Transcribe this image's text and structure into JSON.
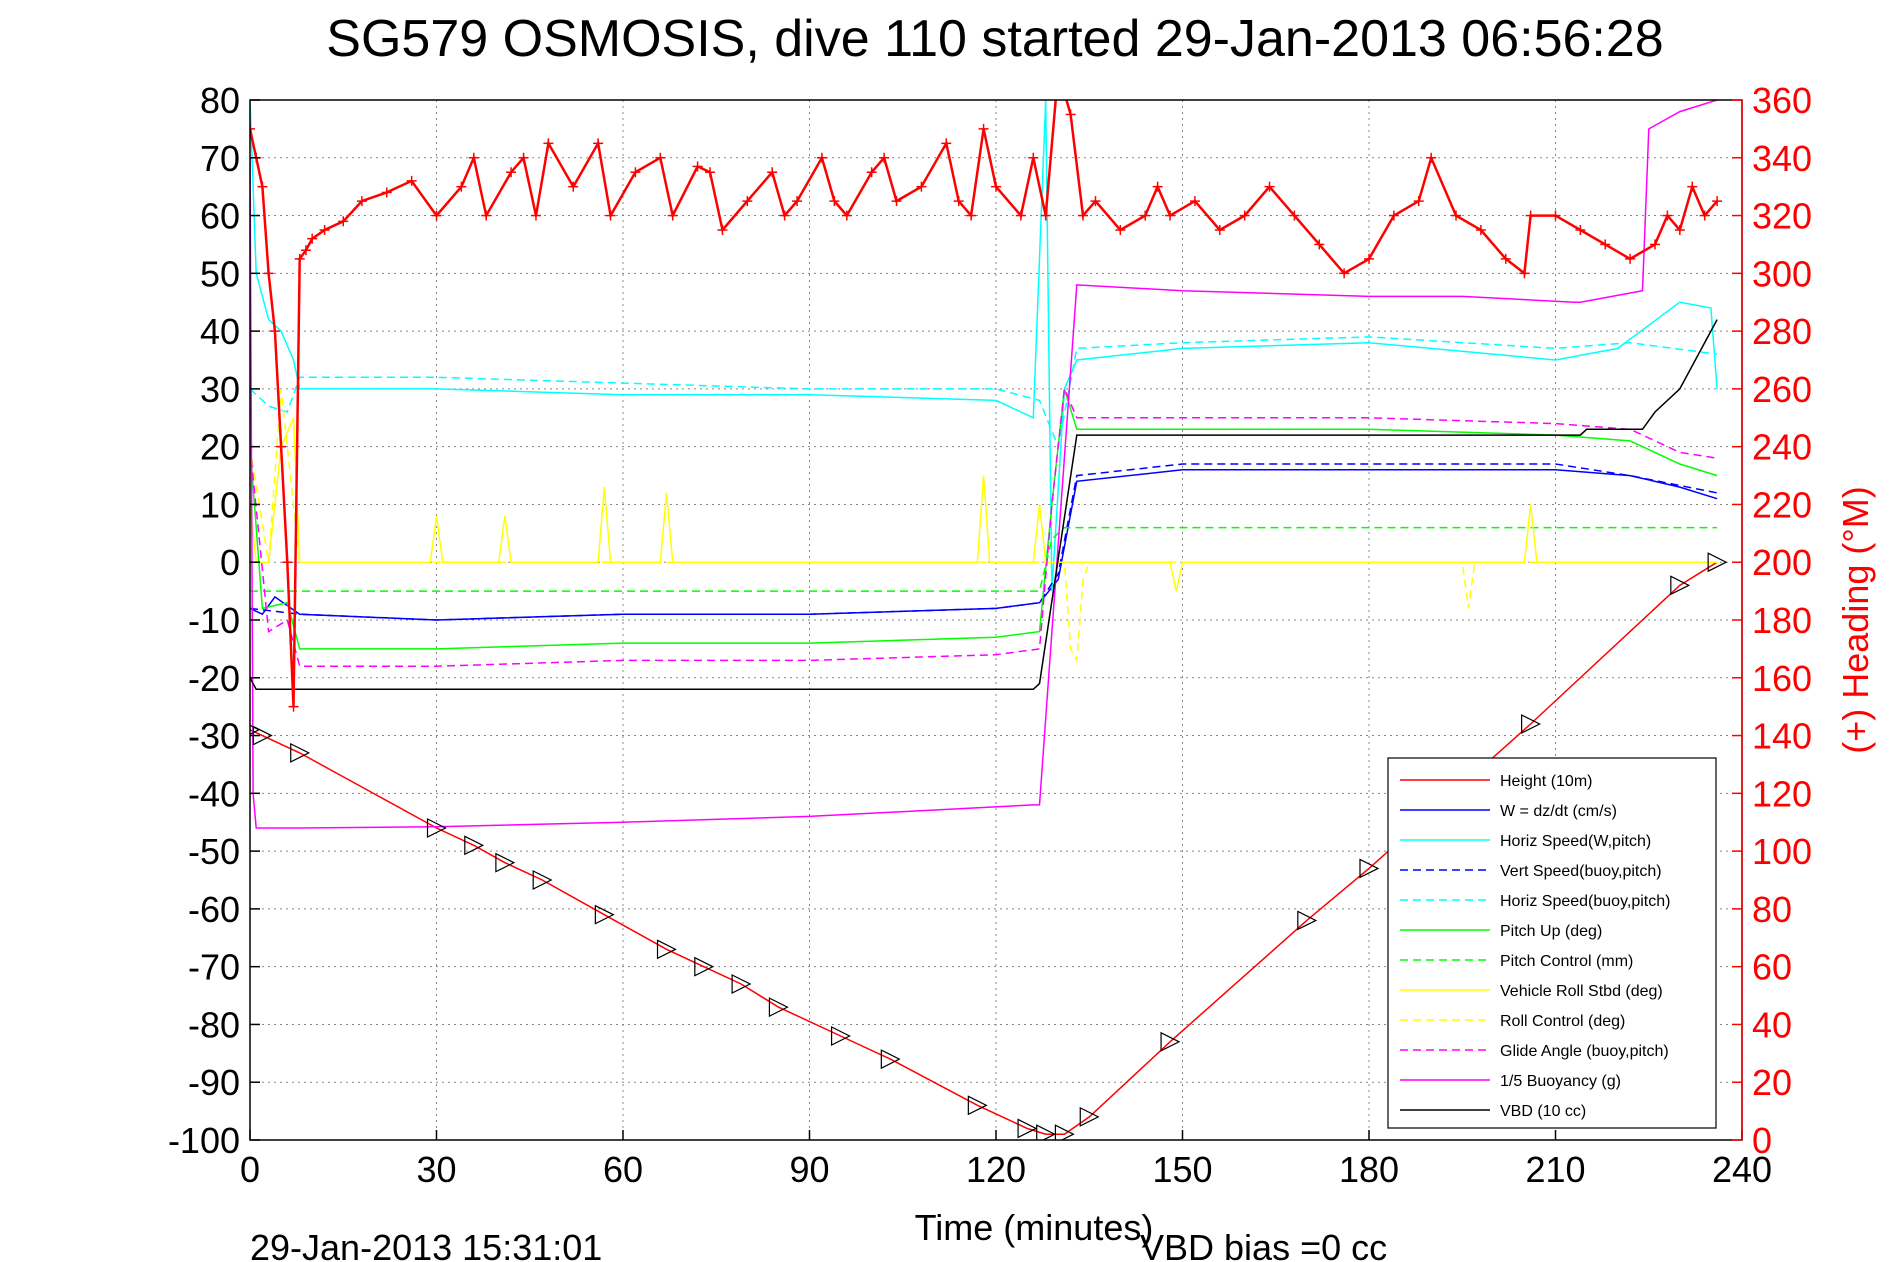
{
  "chart_data": {
    "type": "line",
    "title": "SG579 OSMOSIS, dive 110 started 29-Jan-2013 06:56:28",
    "xlabel": "Time (minutes)",
    "ylabel": "",
    "y2label": "(+) Heading (°M)",
    "footer_left": "29-Jan-2013 15:31:01",
    "footer_right": "VBD bias =0 cc",
    "xlim": [
      0,
      240
    ],
    "ylim": [
      -100,
      80
    ],
    "y2lim": [
      0,
      360
    ],
    "xticks": [
      0,
      30,
      60,
      90,
      120,
      150,
      180,
      210,
      240
    ],
    "yticks": [
      -100,
      -90,
      -80,
      -70,
      -60,
      -50,
      -40,
      -30,
      -20,
      -10,
      0,
      10,
      20,
      30,
      40,
      50,
      60,
      70,
      80
    ],
    "y2ticks": [
      0,
      20,
      40,
      60,
      80,
      100,
      120,
      140,
      160,
      180,
      200,
      220,
      240,
      260,
      280,
      300,
      320,
      340,
      360
    ],
    "grid": true,
    "legend_position": "lower-right",
    "colors": {
      "height": "#ff0000",
      "w": "#0000ff",
      "horiz_speed": "#00ffff",
      "pitch": "#00ff00",
      "roll": "#ffff00",
      "glide": "#ff00ff",
      "buoyancy": "#ff00ff",
      "vbd": "#000000",
      "heading": "#ff0000"
    },
    "series": [
      {
        "name": "Height (10m)",
        "style": "solid",
        "color": "#ff0000",
        "x": [
          0,
          2,
          8,
          30,
          36,
          41,
          47,
          57,
          67,
          73,
          79,
          85,
          95,
          103,
          117,
          125,
          128,
          131,
          135,
          148,
          170,
          180,
          206,
          230,
          236
        ],
        "y": [
          -29,
          -30,
          -33,
          -46,
          -49,
          -52,
          -55,
          -61,
          -67,
          -70,
          -73,
          -77,
          -82,
          -86,
          -94,
          -98,
          -99,
          -99,
          -96,
          -83,
          -62,
          -53,
          -28,
          -4,
          0
        ]
      },
      {
        "name": "W = dz/dt (cm/s)",
        "style": "solid",
        "color": "#0000ff",
        "x": [
          0,
          2,
          4,
          8,
          30,
          60,
          90,
          120,
          127,
          130,
          133,
          150,
          180,
          210,
          222,
          230,
          236
        ],
        "y": [
          -8,
          -9,
          -6,
          -9,
          -10,
          -9,
          -9,
          -8,
          -7,
          -3,
          14,
          16,
          16,
          16,
          15,
          13,
          11
        ]
      },
      {
        "name": "Horiz Speed(W,pitch)",
        "style": "solid",
        "color": "#00ffff",
        "x": [
          0,
          1,
          3,
          5,
          7,
          8,
          30,
          60,
          90,
          120,
          126,
          128,
          129,
          131,
          133,
          150,
          180,
          210,
          220,
          230,
          235,
          236
        ],
        "y": [
          80,
          50,
          42,
          40,
          35,
          30,
          30,
          29,
          29,
          28,
          25,
          80,
          -5,
          30,
          35,
          37,
          38,
          35,
          37,
          45,
          44,
          30
        ]
      },
      {
        "name": "Vert Speed(buoy,pitch)",
        "style": "dashed",
        "color": "#0000ff",
        "x": [
          0,
          8,
          30,
          60,
          90,
          120,
          127,
          130,
          133,
          150,
          180,
          210,
          222,
          236
        ],
        "y": [
          -8,
          -9,
          -10,
          -9,
          -9,
          -8,
          -7,
          -2,
          15,
          17,
          17,
          17,
          15,
          12
        ]
      },
      {
        "name": "Horiz Speed(buoy,pitch)",
        "style": "dashed",
        "color": "#00ffff",
        "x": [
          0,
          3,
          6,
          8,
          30,
          60,
          90,
          120,
          127,
          130,
          133,
          150,
          180,
          210,
          222,
          236
        ],
        "y": [
          30,
          27,
          26,
          32,
          32,
          31,
          30,
          30,
          28,
          20,
          37,
          38,
          39,
          37,
          38,
          36
        ]
      },
      {
        "name": "Pitch Up (deg)",
        "style": "solid",
        "color": "#00ff00",
        "x": [
          0,
          2,
          6,
          8,
          30,
          60,
          90,
          120,
          127,
          129,
          131,
          133,
          150,
          180,
          210,
          222,
          230,
          236
        ],
        "y": [
          20,
          -8,
          -7,
          -15,
          -15,
          -14,
          -14,
          -13,
          -12,
          10,
          30,
          23,
          23,
          23,
          22,
          21,
          17,
          15
        ]
      },
      {
        "name": "Pitch Control (mm)",
        "style": "dashed",
        "color": "#00ff00",
        "x": [
          0,
          3,
          8,
          127,
          129,
          131,
          236
        ],
        "y": [
          -5,
          -5,
          -5,
          -5,
          4,
          6,
          6
        ]
      },
      {
        "name": "Vehicle Roll Stbd (deg)",
        "style": "solid",
        "color": "#ffff00",
        "x": [
          0,
          1,
          3,
          5,
          7,
          8,
          29,
          30,
          31,
          40,
          41,
          42,
          56,
          57,
          58,
          66,
          67,
          68,
          117,
          118,
          119,
          126,
          127,
          128,
          130,
          133,
          148,
          149,
          150,
          205,
          206,
          207,
          230,
          236
        ],
        "y": [
          10,
          0,
          0,
          20,
          25,
          0,
          0,
          8,
          0,
          0,
          8,
          0,
          0,
          13,
          0,
          0,
          12,
          0,
          0,
          15,
          0,
          0,
          10,
          0,
          0,
          0,
          0,
          -5,
          0,
          0,
          10,
          0,
          0,
          0
        ]
      },
      {
        "name": "Roll Control (deg)",
        "style": "dashed",
        "color": "#ffff00",
        "x": [
          0,
          3,
          5,
          8,
          30,
          127,
          131,
          132,
          133,
          134,
          135,
          195,
          196,
          197,
          236
        ],
        "y": [
          20,
          0,
          30,
          0,
          0,
          0,
          0,
          -15,
          -17,
          -3,
          0,
          0,
          -8,
          0,
          0
        ]
      },
      {
        "name": "Glide Angle (buoy,pitch)",
        "style": "dashed",
        "color": "#ff00ff",
        "x": [
          0,
          3,
          6,
          8,
          30,
          60,
          90,
          120,
          127,
          129,
          131,
          133,
          150,
          180,
          210,
          222,
          230,
          236
        ],
        "y": [
          20,
          -12,
          -10,
          -18,
          -18,
          -17,
          -17,
          -16,
          -15,
          10,
          30,
          25,
          25,
          25,
          24,
          23,
          19,
          18
        ]
      },
      {
        "name": "1/5 Buoyancy (g)",
        "style": "solid",
        "color": "#ff00ff",
        "x": [
          0,
          0.5,
          1,
          8,
          30,
          60,
          90,
          126,
          127,
          133,
          150,
          180,
          195,
          213,
          214,
          224,
          225,
          230,
          236
        ],
        "y": [
          70,
          -40,
          -46,
          -46,
          -45.8,
          -45,
          -44,
          -42,
          -42,
          48,
          47,
          46,
          46,
          45,
          45,
          47,
          75,
          78,
          80
        ]
      },
      {
        "name": "VBD (10 cc)",
        "style": "solid",
        "color": "#000000",
        "x": [
          0,
          0.5,
          1,
          8,
          30,
          60,
          90,
          126,
          127,
          133,
          150,
          180,
          214,
          215,
          224,
          226,
          230,
          236
        ],
        "y": [
          -20,
          -21,
          -22,
          -22,
          -22,
          -22,
          -22,
          -22,
          -21,
          22,
          22,
          22,
          22,
          23,
          23,
          26,
          30,
          42
        ]
      }
    ],
    "heading": {
      "name": "(+) Heading",
      "marker": "+",
      "color": "#ff0000",
      "x": [
        0,
        1,
        2,
        3,
        4,
        5,
        6,
        7,
        8,
        9,
        10,
        12,
        15,
        18,
        22,
        26,
        30,
        34,
        36,
        38,
        42,
        44,
        46,
        48,
        52,
        56,
        58,
        62,
        66,
        68,
        72,
        74,
        76,
        80,
        84,
        86,
        88,
        92,
        94,
        96,
        100,
        102,
        104,
        108,
        112,
        114,
        116,
        118,
        120,
        124,
        126,
        128,
        130,
        132,
        134,
        136,
        140,
        144,
        146,
        148,
        152,
        156,
        160,
        164,
        168,
        172,
        176,
        180,
        184,
        188,
        190,
        194,
        198,
        202,
        205,
        206,
        210,
        214,
        218,
        222,
        226,
        228,
        230,
        232,
        234,
        236
      ],
      "y": [
        350,
        340,
        330,
        300,
        280,
        240,
        200,
        150,
        305,
        308,
        312,
        315,
        318,
        325,
        328,
        332,
        320,
        330,
        340,
        320,
        335,
        340,
        320,
        345,
        330,
        345,
        320,
        335,
        340,
        320,
        337,
        335,
        315,
        325,
        335,
        320,
        325,
        340,
        325,
        320,
        335,
        340,
        325,
        330,
        345,
        325,
        320,
        350,
        330,
        320,
        340,
        320,
        370,
        355,
        320,
        325,
        315,
        320,
        330,
        320,
        325,
        315,
        320,
        330,
        320,
        310,
        300,
        305,
        320,
        325,
        340,
        320,
        315,
        305,
        300,
        320,
        320,
        315,
        310,
        305,
        310,
        320,
        315,
        330,
        320,
        325
      ]
    },
    "legend_entries": [
      "Height (10m)",
      "W = dz/dt (cm/s)",
      "Horiz Speed(W,pitch)",
      "Vert Speed(buoy,pitch)",
      "Horiz Speed(buoy,pitch)",
      "Pitch Up (deg)",
      "Pitch Control (mm)",
      "Vehicle Roll Stbd (deg)",
      "Roll Control (deg)",
      "Glide Angle (buoy,pitch)",
      "1/5 Buoyancy (g)",
      "VBD (10 cc)"
    ]
  }
}
